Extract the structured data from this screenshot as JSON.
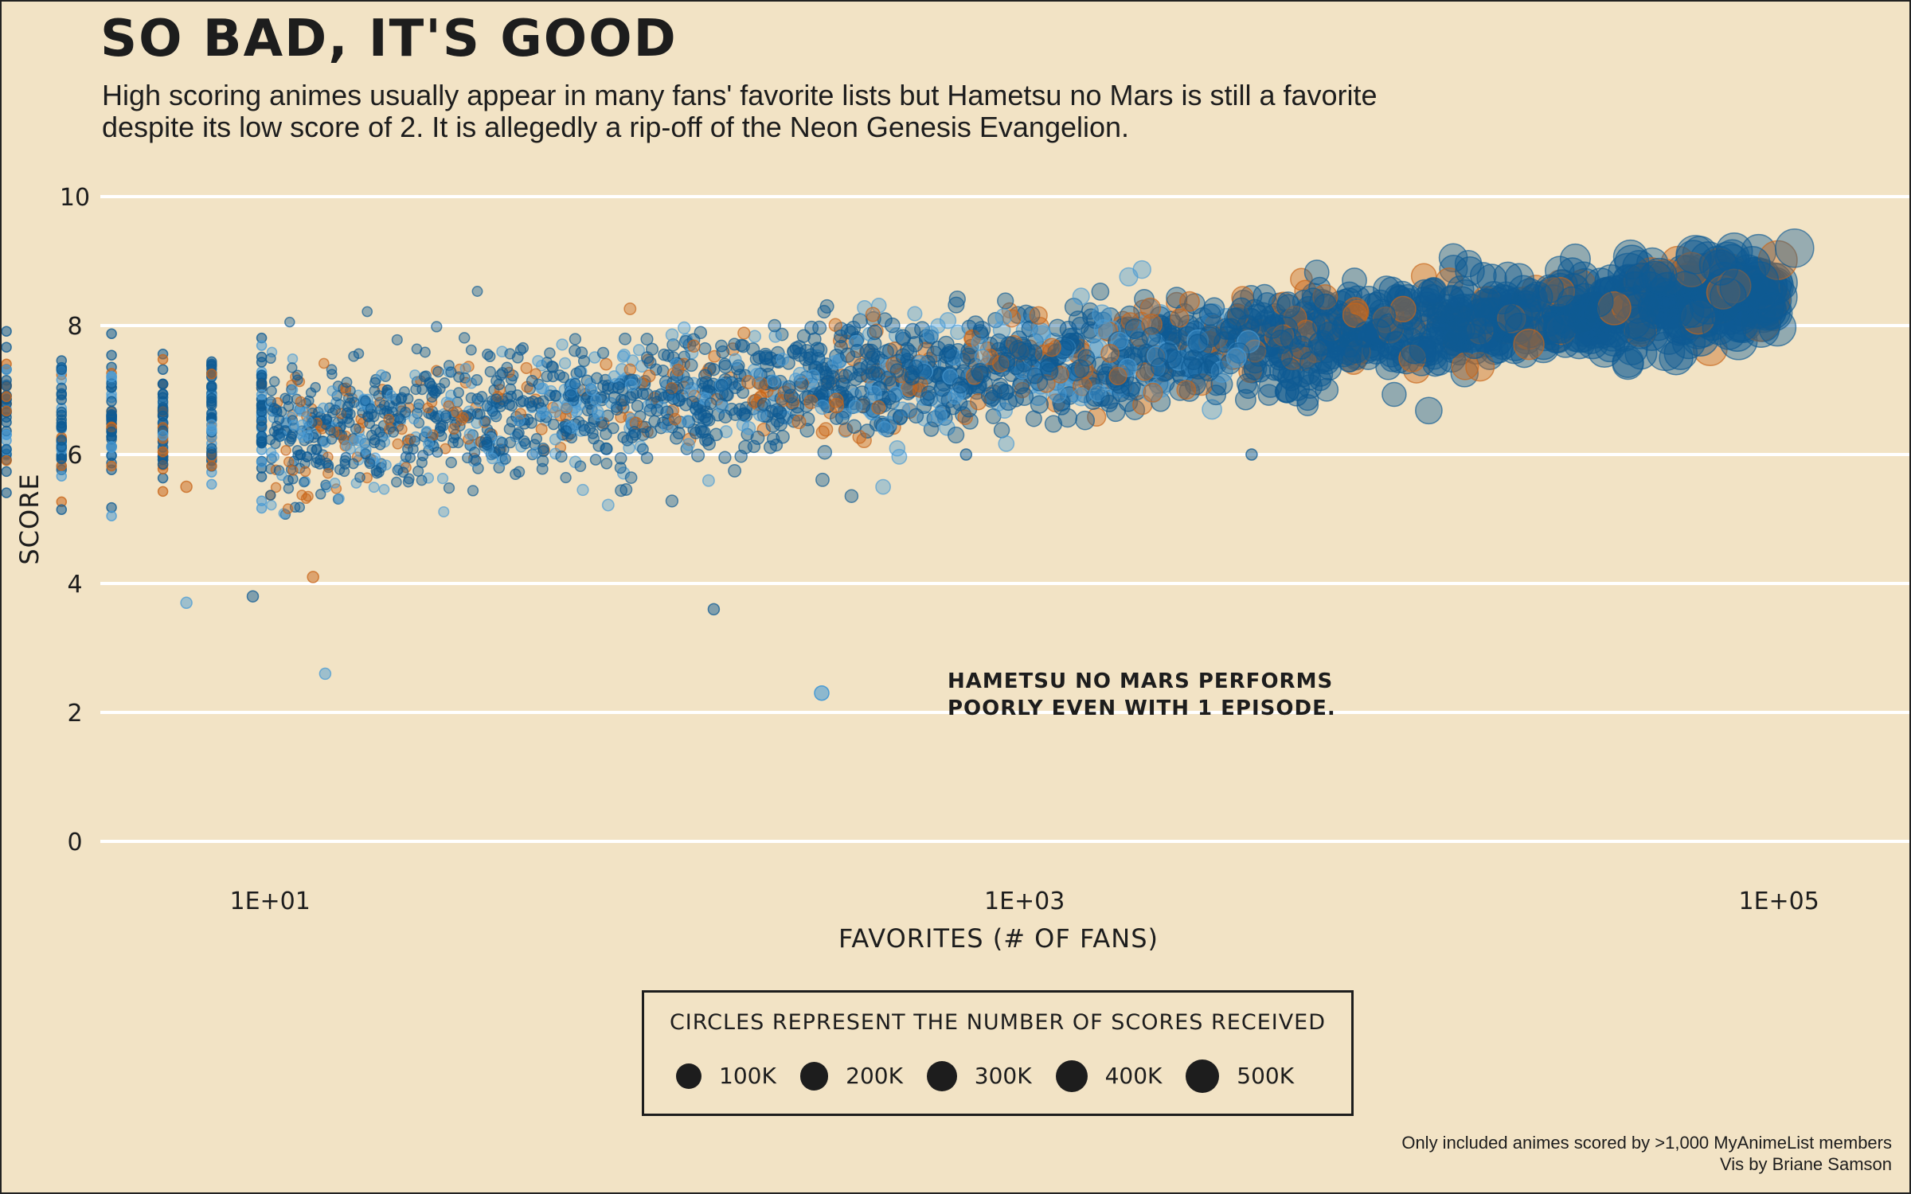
{
  "title": "SO BAD, IT'S GOOD",
  "subtitle_line1": "High scoring animes usually appear in many fans' favorite lists but Hametsu no Mars is still a favorite",
  "subtitle_line2": "despite its low score of 2. It is allegedly a rip-off of the Neon Genesis Evangelion.",
  "annotation_line1": "HAMETSU NO MARS PERFORMS",
  "annotation_line2": "POORLY EVEN WITH 1 EPISODE.",
  "legend": {
    "title": "CIRCLES REPRESENT THE NUMBER OF SCORES RECEIVED",
    "items": [
      {
        "label": "100K",
        "value": 100000
      },
      {
        "label": "200K",
        "value": 200000
      },
      {
        "label": "300K",
        "value": 300000
      },
      {
        "label": "400K",
        "value": 400000
      },
      {
        "label": "500K",
        "value": 500000
      }
    ]
  },
  "caption_line1": "Only included animes scored by >1,000 MyAnimeList members",
  "caption_line2": "Vis by Briane Samson",
  "colors": {
    "background": "#f2e3c5",
    "blue_dark": "#0f5b94",
    "blue_light": "#4a9bd4",
    "orange": "#c8661a",
    "grid": "#ffffff",
    "ink": "#1d1d1d"
  },
  "chart_data": {
    "type": "scatter",
    "title": "SO BAD, IT'S GOOD",
    "xlabel": "FAVORITES (# OF FANS)",
    "ylabel": "SCORE",
    "x_scale": "log10",
    "x_ticks": [
      {
        "value": 10,
        "label": "1E+01"
      },
      {
        "value": 1000,
        "label": "1E+03"
      },
      {
        "value": 100000,
        "label": "1E+05"
      }
    ],
    "y_ticks": [
      {
        "value": 0,
        "label": "0"
      },
      {
        "value": 2,
        "label": "2"
      },
      {
        "value": 4,
        "label": "4"
      },
      {
        "value": 6,
        "label": "6"
      },
      {
        "value": 8,
        "label": "8"
      },
      {
        "value": 10,
        "label": "10"
      }
    ],
    "xlim": [
      1,
      150000
    ],
    "ylim": [
      0,
      10
    ],
    "grid": "horizontal",
    "size_encoding": "number of scores received",
    "highlight": {
      "name": "Hametsu no Mars",
      "favorites": 290,
      "score": 2.3
    },
    "series_colors": [
      "#0f5b94",
      "#4a9bd4",
      "#c8661a"
    ]
  }
}
